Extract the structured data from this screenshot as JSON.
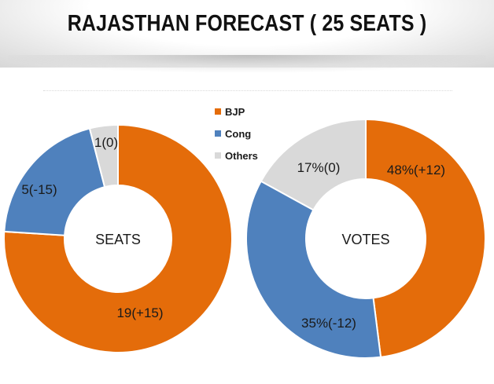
{
  "title": "RAJASTHAN FORECAST ( 25 SEATS )",
  "colors": {
    "BJP": "#E46C0A",
    "Cong": "#4F81BD",
    "Others": "#D9D9D9"
  },
  "legend": {
    "placement": "top-center",
    "items": [
      {
        "label": "BJP"
      },
      {
        "label": "Cong"
      },
      {
        "label": "Others"
      }
    ]
  },
  "chart_data": [
    {
      "type": "pie",
      "center_label": "SEATS",
      "categories": [
        "BJP",
        "Cong",
        "Others"
      ],
      "values": [
        19,
        5,
        1
      ],
      "data_labels": [
        "19(+15)",
        "5(-15)",
        "1(0)"
      ]
    },
    {
      "type": "pie",
      "center_label": "VOTES",
      "categories": [
        "BJP",
        "Cong",
        "Others"
      ],
      "values": [
        48,
        35,
        17
      ],
      "data_labels": [
        "48%(+12)",
        "35%(-12)",
        "17%(0)"
      ]
    }
  ]
}
